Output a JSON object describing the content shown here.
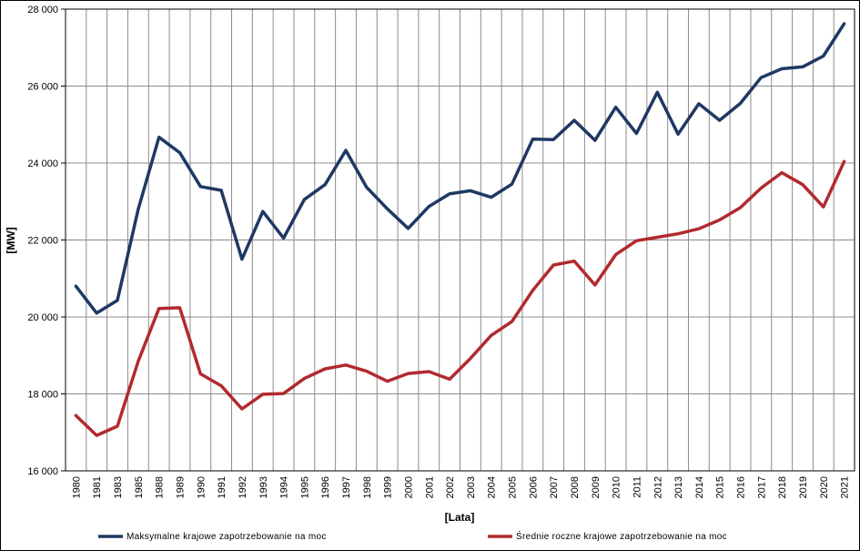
{
  "chart_data": {
    "type": "line",
    "xlabel": "[Lata]",
    "ylabel": "[MW]",
    "ylim": [
      16000,
      28000
    ],
    "yticks": [
      16000,
      18000,
      20000,
      22000,
      24000,
      26000,
      28000
    ],
    "ytick_labels": [
      "16 000",
      "18 000",
      "20 000",
      "22 000",
      "24 000",
      "26 000",
      "28 000"
    ],
    "grid": true,
    "legend_position": "bottom",
    "categories": [
      "1980",
      "1981",
      "1983",
      "1985",
      "1988",
      "1989",
      "1990",
      "1991",
      "1992",
      "1993",
      "1994",
      "1995",
      "1996",
      "1997",
      "1998",
      "1999",
      "2000",
      "2001",
      "2002",
      "2003",
      "2004",
      "2005",
      "2006",
      "2007",
      "2008",
      "2009",
      "2010",
      "2011",
      "2012",
      "2013",
      "2014",
      "2015",
      "2016",
      "2017",
      "2018",
      "2019",
      "2020",
      "2021"
    ],
    "series": [
      {
        "name": "Maksymalne krajowe zapotrzebowanie na moc",
        "color": "#1f3864",
        "values": [
          20800,
          20100,
          20430,
          22800,
          24670,
          24270,
          23390,
          23290,
          21500,
          22740,
          22050,
          23050,
          23440,
          24330,
          23370,
          22810,
          22300,
          22870,
          23200,
          23280,
          23110,
          23450,
          24620,
          24610,
          25110,
          24590,
          25450,
          24770,
          25840,
          24750,
          25540,
          25110,
          25550,
          26220,
          26450,
          26500,
          26780,
          27620
        ]
      },
      {
        "name": "Średnie roczne krajowe zapotrzebowanie na moc",
        "color": "#b22a2e",
        "values": [
          17440,
          16920,
          17160,
          18850,
          20220,
          20240,
          18520,
          18210,
          17610,
          17990,
          18010,
          18400,
          18650,
          18750,
          18590,
          18330,
          18530,
          18580,
          18380,
          18920,
          19520,
          19880,
          20690,
          21350,
          21450,
          20830,
          21620,
          21980,
          22070,
          22160,
          22290,
          22520,
          22840,
          23350,
          23750,
          23440,
          22860,
          24040
        ]
      }
    ]
  }
}
